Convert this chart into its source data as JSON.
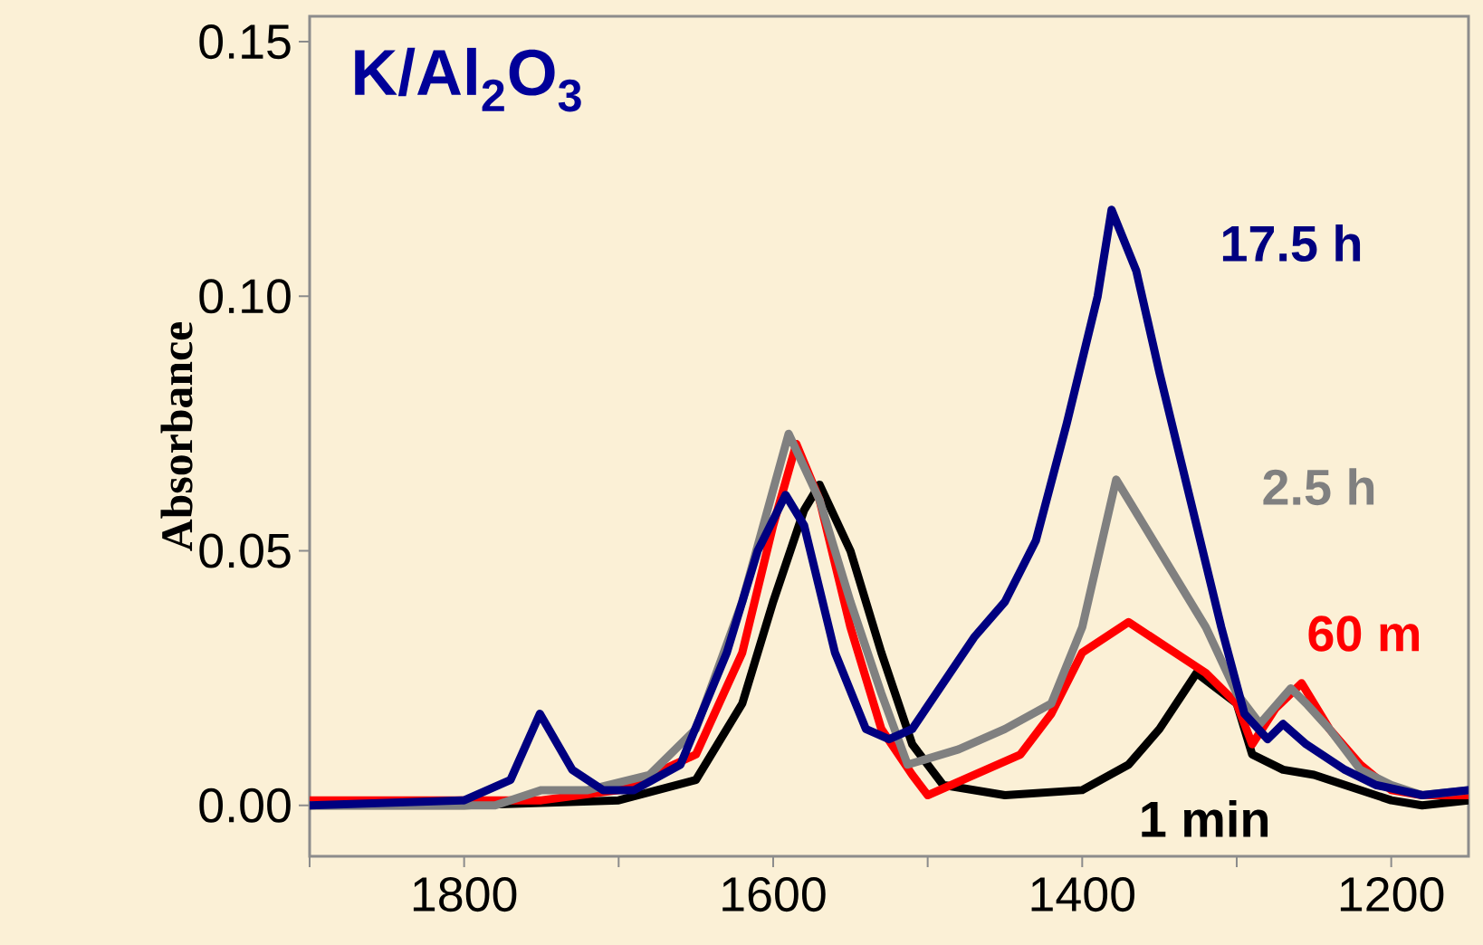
{
  "chart_data": {
    "type": "line",
    "ylabel": "Absorbance",
    "annotations": [
      "K/Al$_{2}$O$_{3}$"
    ],
    "xlim": [
      1900,
      1150
    ],
    "ylim": [
      -0.01,
      0.155
    ],
    "xticks": [
      {
        "value": 1900,
        "label": null
      },
      1800,
      {
        "value": 1700,
        "label": null
      },
      1600,
      {
        "value": 1500,
        "label": null
      },
      1400,
      {
        "value": 1300,
        "label": null
      },
      1200
    ],
    "yticks": [
      {
        "value": 0,
        "label": "0.00"
      },
      {
        "value": 0.05,
        "label": "0.05"
      },
      {
        "value": 0.1,
        "label": "0.10"
      },
      {
        "value": 0.15,
        "label": "0.15"
      }
    ],
    "grid": false,
    "legend": false,
    "marker": "none",
    "line_style": "solid",
    "series": [
      {
        "name": "1 min",
        "color": "#000000",
        "x": [
          1900,
          1800,
          1700,
          1650,
          1620,
          1600,
          1580,
          1570,
          1550,
          1530,
          1510,
          1490,
          1450,
          1400,
          1370,
          1350,
          1326,
          1300,
          1290,
          1270,
          1250,
          1230,
          1200,
          1180,
          1150
        ],
        "values": [
          0.0,
          0.0,
          0.001,
          0.005,
          0.02,
          0.04,
          0.058,
          0.063,
          0.05,
          0.03,
          0.012,
          0.004,
          0.002,
          0.003,
          0.008,
          0.015,
          0.026,
          0.02,
          0.01,
          0.007,
          0.006,
          0.004,
          0.001,
          0.0,
          0.001
        ]
      },
      {
        "name": "60 m",
        "color": "#ff0000",
        "x": [
          1900,
          1750,
          1700,
          1650,
          1620,
          1600,
          1585,
          1570,
          1550,
          1530,
          1510,
          1500,
          1470,
          1440,
          1420,
          1400,
          1370,
          1340,
          1320,
          1300,
          1290,
          1275,
          1258,
          1240,
          1220,
          1200,
          1180,
          1150
        ],
        "values": [
          0.001,
          0.001,
          0.003,
          0.01,
          0.03,
          0.055,
          0.071,
          0.06,
          0.035,
          0.015,
          0.006,
          0.002,
          0.006,
          0.01,
          0.018,
          0.03,
          0.036,
          0.03,
          0.026,
          0.02,
          0.012,
          0.019,
          0.024,
          0.015,
          0.008,
          0.003,
          0.002,
          0.002
        ]
      },
      {
        "name": "2.5 h",
        "color": "#808080",
        "x": [
          1900,
          1780,
          1750,
          1720,
          1680,
          1650,
          1620,
          1600,
          1590,
          1570,
          1550,
          1530,
          1513,
          1480,
          1450,
          1420,
          1400,
          1378,
          1360,
          1340,
          1320,
          1300,
          1285,
          1265,
          1255,
          1240,
          1220,
          1200,
          1180,
          1150
        ],
        "values": [
          0.0,
          0.0,
          0.003,
          0.003,
          0.006,
          0.015,
          0.04,
          0.062,
          0.073,
          0.06,
          0.04,
          0.022,
          0.008,
          0.011,
          0.015,
          0.02,
          0.035,
          0.064,
          0.055,
          0.045,
          0.035,
          0.022,
          0.016,
          0.023,
          0.02,
          0.015,
          0.007,
          0.004,
          0.002,
          0.003
        ]
      },
      {
        "name": "17.5 h",
        "color": "#000080",
        "x": [
          1900,
          1800,
          1770,
          1751,
          1730,
          1710,
          1690,
          1660,
          1630,
          1610,
          1592,
          1580,
          1560,
          1540,
          1525,
          1510,
          1490,
          1470,
          1450,
          1430,
          1410,
          1390,
          1381,
          1365,
          1350,
          1330,
          1310,
          1295,
          1280,
          1270,
          1255,
          1230,
          1210,
          1180,
          1150
        ],
        "values": [
          0.0,
          0.001,
          0.005,
          0.018,
          0.007,
          0.003,
          0.003,
          0.008,
          0.03,
          0.05,
          0.061,
          0.055,
          0.03,
          0.015,
          0.013,
          0.015,
          0.024,
          0.033,
          0.04,
          0.052,
          0.075,
          0.1,
          0.117,
          0.105,
          0.085,
          0.06,
          0.035,
          0.018,
          0.013,
          0.016,
          0.012,
          0.007,
          0.004,
          0.002,
          0.003
        ]
      }
    ]
  }
}
